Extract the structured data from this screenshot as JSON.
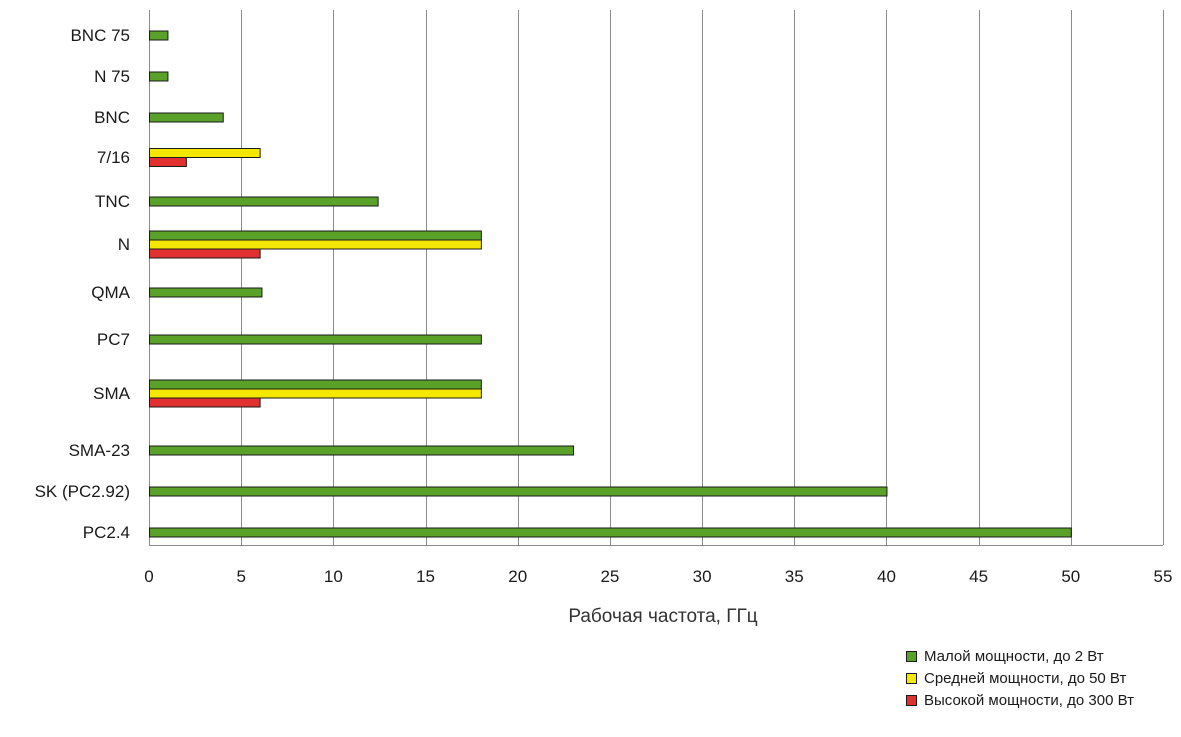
{
  "chart_data": {
    "type": "bar",
    "orientation": "horizontal",
    "categories": [
      "BNC 75",
      "N 75",
      "BNC",
      "7/16",
      "TNC",
      "N",
      "QMA",
      "PC7",
      "SMA",
      "SMA-23",
      "SK (PC2.92)",
      "PC2.4"
    ],
    "series": [
      {
        "name": "Малой мощности, до 2 Вт",
        "color": "#5aa12a",
        "values": [
          1,
          1,
          4,
          null,
          12.4,
          18,
          6.1,
          18,
          18,
          23,
          40,
          50
        ]
      },
      {
        "name": "Средней мощности, до 50 Вт",
        "color": "#f5e800",
        "values": [
          null,
          null,
          null,
          6,
          null,
          18,
          null,
          null,
          18,
          null,
          null,
          null
        ]
      },
      {
        "name": "Высокой мощности, до 300 Вт",
        "color": "#e03030",
        "values": [
          null,
          null,
          null,
          2,
          null,
          6,
          null,
          null,
          6,
          null,
          null,
          null
        ]
      }
    ],
    "xlabel": "Рабочая частота, ГГц",
    "ylabel": "",
    "xlim": [
      0,
      55
    ],
    "xticks": [
      0,
      5,
      10,
      15,
      20,
      25,
      30,
      35,
      40,
      45,
      50,
      55
    ],
    "grid": "vertical",
    "legend_position": "bottom-right"
  }
}
